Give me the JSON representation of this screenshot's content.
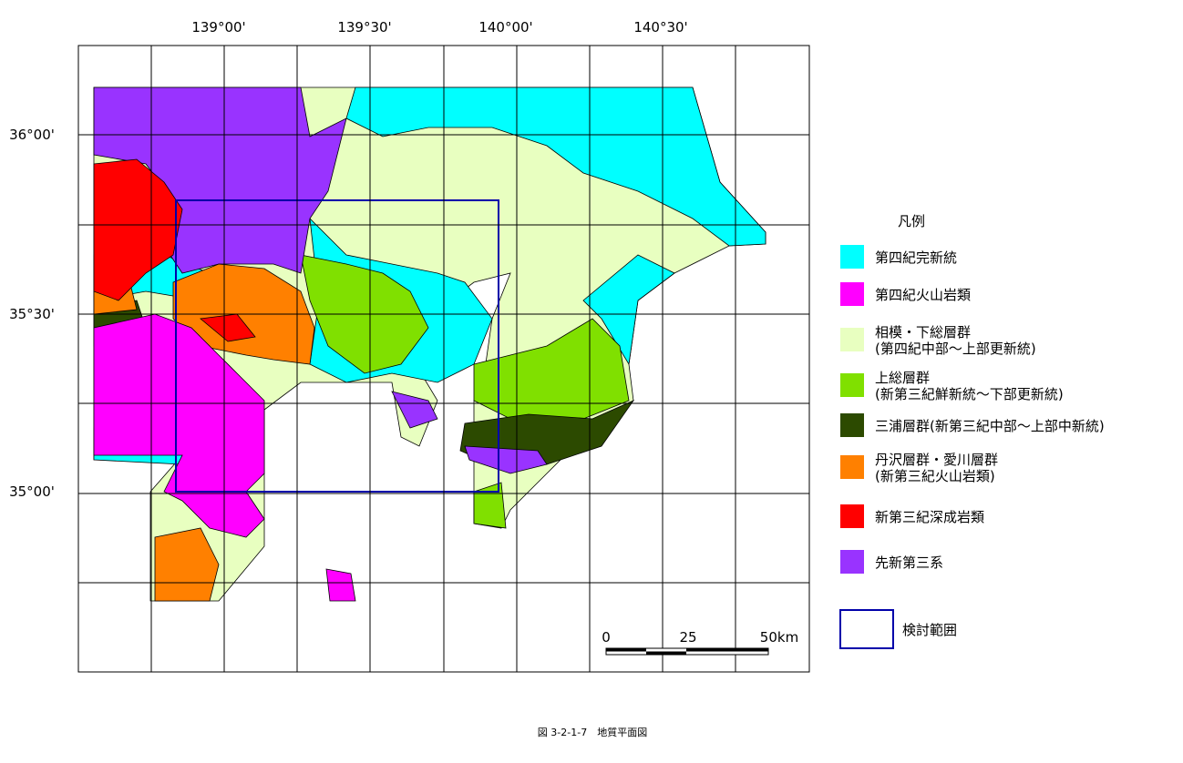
{
  "title": "凡例",
  "longitude_labels": [
    "139°00'",
    "139°30'",
    "140°00'",
    "140°30'"
  ],
  "latitude_labels": [
    "36°00'",
    "35°30'",
    "35°00'"
  ],
  "legend": {
    "items": [
      {
        "label": "第四紀完新統",
        "color": "#00ffff"
      },
      {
        "label": "第四紀火山岩類",
        "color": "#ff00ff"
      },
      {
        "label": "相模・下総層群",
        "sublabel": "(第四紀中部～上部更新統)",
        "color": "#e8ffc0"
      },
      {
        "label": "上総層群",
        "sublabel": "(新第三紀鮮新統～下部更新統)",
        "color": "#80e000"
      },
      {
        "label": "三浦層群(新第三紀中部～上部中新統)",
        "color": "#2c4a00"
      },
      {
        "label": "丹沢層群・愛川層群",
        "sublabel": "(新第三紀火山岩類)",
        "color": "#ff8000"
      },
      {
        "label": "新第三紀深成岩類",
        "color": "#ff0000"
      },
      {
        "label": "先新第三系",
        "color": "#9933ff"
      }
    ],
    "study_area": "検討範囲"
  },
  "scale_labels": [
    "0",
    "25",
    "50km"
  ],
  "caption": "図 3-2-1-7　地質平面図"
}
